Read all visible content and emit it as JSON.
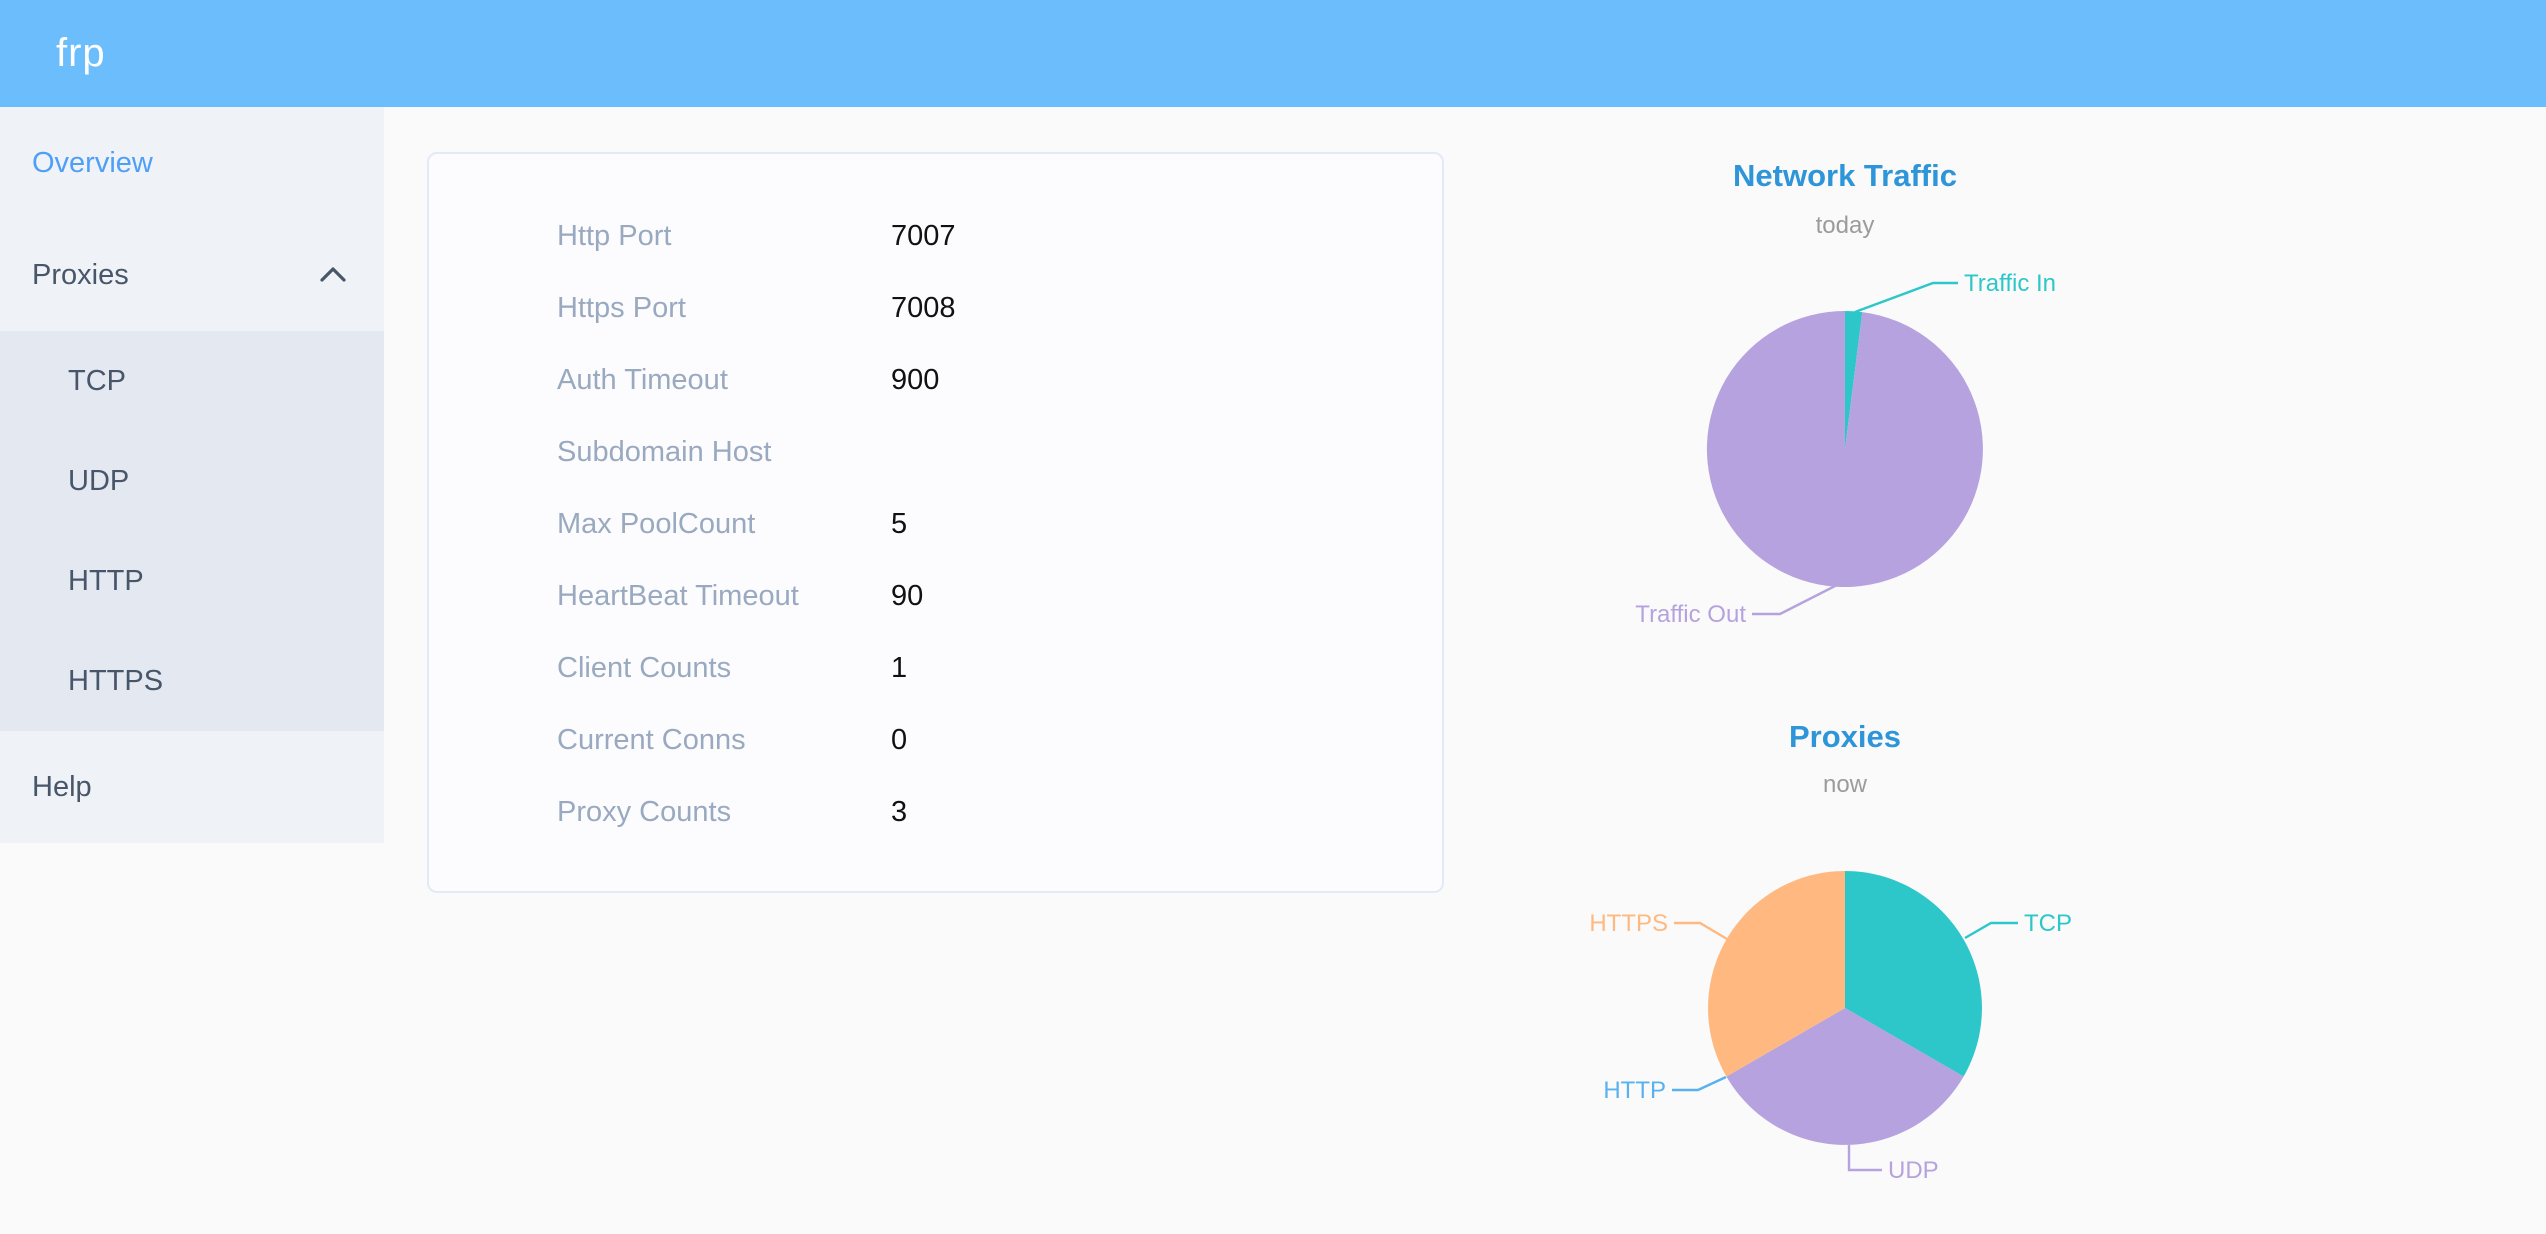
{
  "header": {
    "logo": "frp"
  },
  "sidebar": {
    "items": [
      {
        "label": "Overview",
        "active": true
      },
      {
        "label": "Proxies",
        "expanded": true,
        "children": [
          "TCP",
          "UDP",
          "HTTP",
          "HTTPS"
        ]
      },
      {
        "label": "Help"
      }
    ]
  },
  "overview": {
    "rows": [
      {
        "label": "Http Port",
        "value": "7007"
      },
      {
        "label": "Https Port",
        "value": "7008"
      },
      {
        "label": "Auth Timeout",
        "value": "900"
      },
      {
        "label": "Subdomain Host",
        "value": ""
      },
      {
        "label": "Max PoolCount",
        "value": "5"
      },
      {
        "label": "HeartBeat Timeout",
        "value": "90"
      },
      {
        "label": "Client Counts",
        "value": "1"
      },
      {
        "label": "Current Conns",
        "value": "0"
      },
      {
        "label": "Proxy Counts",
        "value": "3"
      }
    ]
  },
  "chart_data": [
    {
      "type": "pie",
      "title": "Network Traffic",
      "subtitle": "today",
      "legend_position": "callout-labels",
      "series": [
        {
          "name": "Traffic In",
          "value": 2,
          "color": "#2EC7C9"
        },
        {
          "name": "Traffic Out",
          "value": 98,
          "color": "#B6A2DE"
        }
      ]
    },
    {
      "type": "pie",
      "title": "Proxies",
      "subtitle": "now",
      "legend_position": "callout-labels",
      "series": [
        {
          "name": "TCP",
          "value": 1,
          "color": "#2EC7C9"
        },
        {
          "name": "UDP",
          "value": 1,
          "color": "#B6A2DE"
        },
        {
          "name": "HTTP",
          "value": 0,
          "color": "#5AB1EF"
        },
        {
          "name": "HTTPS",
          "value": 1,
          "color": "#FFB980"
        }
      ]
    }
  ],
  "colors": {
    "header_bg": "#6CBDFC",
    "sidebar_bg": "#EFF2F7",
    "submenu_bg": "#E4E8F1",
    "menu_text": "#475669",
    "menu_active": "#4F9FF7",
    "page_bg": "#FAFAFB",
    "card_border": "#E3E9F5",
    "field_label": "#99A9BF",
    "field_value": "#111111",
    "chart_title": "#2D95D8",
    "chart_subtitle": "#9B9B9B",
    "pie_teal": "#2EC7C9",
    "pie_purple": "#B6A2DE",
    "pie_blue": "#5AB1EF",
    "pie_orange": "#FFB980"
  }
}
